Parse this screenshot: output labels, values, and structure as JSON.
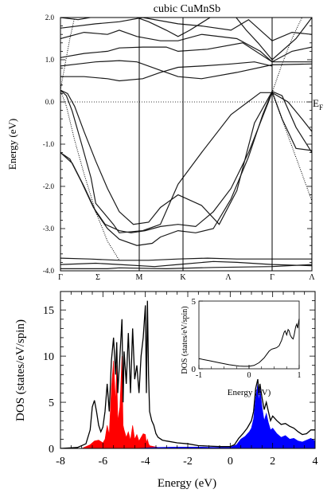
{
  "chart_data": [
    {
      "type": "line",
      "title": "cubic CuMnSb",
      "ylabel": "Energy (eV)",
      "xlabel": "",
      "ylim": [
        -4.0,
        2.0
      ],
      "yticks": [
        "2.0",
        "1.0",
        "0.0",
        "-1.0",
        "-2.0",
        "-3.0",
        "-4.0"
      ],
      "high_symmetry_points": [
        "Γ",
        "Σ",
        "M",
        "K",
        "Λ",
        "Γ",
        "Λ"
      ],
      "fermi_label": "E",
      "fermi_sub": "F",
      "grid": false,
      "bands": [
        [
          [
            0,
            0.28
          ],
          [
            0.05,
            0.15
          ],
          [
            0.1,
            -0.22
          ],
          [
            0.18,
            -1.0
          ],
          [
            0.26,
            -1.8
          ],
          [
            0.3,
            -2.4
          ],
          [
            0.45,
            -2.9
          ],
          [
            0.5,
            -3.1
          ],
          [
            0.7,
            -3.05
          ],
          [
            0.85,
            -2.9
          ],
          [
            1.0,
            -1.95
          ],
          [
            1.2,
            -1.2
          ],
          [
            1.45,
            -0.3
          ],
          [
            1.7,
            0.22
          ],
          [
            1.8,
            0.22
          ],
          [
            1.88,
            0.0
          ],
          [
            1.95,
            -0.4
          ],
          [
            2.0,
            -0.7
          ]
        ],
        [
          [
            0,
            0.28
          ],
          [
            0.06,
            0.2
          ],
          [
            0.12,
            -0.1
          ],
          [
            0.2,
            -0.7
          ],
          [
            0.3,
            -1.4
          ],
          [
            0.4,
            -2.05
          ],
          [
            0.5,
            -2.6
          ],
          [
            0.62,
            -2.9
          ],
          [
            0.75,
            -2.85
          ],
          [
            0.85,
            -2.5
          ],
          [
            1.0,
            -2.2
          ],
          [
            1.2,
            -2.45
          ],
          [
            1.35,
            -2.9
          ],
          [
            1.5,
            -2.1
          ],
          [
            1.65,
            -0.5
          ],
          [
            1.8,
            0.25
          ],
          [
            1.85,
            0.15
          ],
          [
            1.92,
            -0.6
          ],
          [
            2.0,
            -1.2
          ]
        ],
        [
          [
            0,
            -1.2
          ],
          [
            0.1,
            -1.45
          ],
          [
            0.2,
            -2.0
          ],
          [
            0.3,
            -2.6
          ],
          [
            0.4,
            -3.0
          ],
          [
            0.5,
            -3.25
          ],
          [
            0.65,
            -3.4
          ],
          [
            0.78,
            -3.35
          ],
          [
            0.85,
            -3.2
          ],
          [
            1.0,
            -3.05
          ],
          [
            1.15,
            -3.1
          ],
          [
            1.3,
            -3.0
          ],
          [
            1.45,
            -2.3
          ],
          [
            1.6,
            -1.3
          ],
          [
            1.72,
            -0.3
          ],
          [
            1.8,
            0.25
          ],
          [
            1.85,
            -0.4
          ],
          [
            1.92,
            -1.1
          ],
          [
            2.0,
            -1.15
          ]
        ],
        [
          [
            0,
            -1.2
          ],
          [
            0.08,
            -1.35
          ],
          [
            0.18,
            -1.9
          ],
          [
            0.28,
            -2.5
          ],
          [
            0.38,
            -2.9
          ],
          [
            0.5,
            -3.05
          ],
          [
            0.6,
            -3.1
          ],
          [
            0.72,
            -3.05
          ],
          [
            0.85,
            -2.95
          ],
          [
            1.0,
            -2.9
          ],
          [
            1.15,
            -2.95
          ],
          [
            1.3,
            -2.6
          ],
          [
            1.45,
            -2.05
          ],
          [
            1.6,
            -1.2
          ],
          [
            1.8,
            0.22
          ]
        ],
        [
          [
            0,
            -3.7
          ],
          [
            0.25,
            -3.72
          ],
          [
            0.5,
            -3.75
          ],
          [
            0.75,
            -3.75
          ],
          [
            1.0,
            -3.72
          ],
          [
            1.25,
            -3.7
          ],
          [
            1.5,
            -3.72
          ],
          [
            1.8,
            -3.72
          ],
          [
            2.0,
            -3.72
          ]
        ],
        [
          [
            0,
            -3.85
          ],
          [
            0.3,
            -3.82
          ],
          [
            0.5,
            -3.85
          ],
          [
            0.8,
            -3.9
          ],
          [
            1.0,
            -3.85
          ],
          [
            1.3,
            -3.78
          ],
          [
            1.5,
            -3.8
          ],
          [
            1.8,
            -3.85
          ],
          [
            2.0,
            -3.88
          ]
        ],
        [
          [
            0,
            -3.95
          ],
          [
            0.4,
            -3.95
          ],
          [
            0.5,
            -3.93
          ],
          [
            0.9,
            -3.95
          ],
          [
            1.3,
            -3.92
          ],
          [
            1.8,
            -3.9
          ],
          [
            2.0,
            -3.85
          ],
          [
            2.0,
            -3.1
          ]
        ],
        [
          [
            0,
            0.85
          ],
          [
            0.15,
            0.9
          ],
          [
            0.3,
            0.95
          ],
          [
            0.5,
            0.98
          ],
          [
            0.65,
            0.95
          ],
          [
            0.85,
            0.75
          ],
          [
            1.0,
            0.6
          ],
          [
            1.2,
            0.55
          ],
          [
            1.5,
            0.7
          ],
          [
            1.8,
            0.88
          ],
          [
            2.0,
            0.9
          ]
        ],
        [
          [
            0,
            1.05
          ],
          [
            0.2,
            1.15
          ],
          [
            0.4,
            1.2
          ],
          [
            0.5,
            1.28
          ],
          [
            0.7,
            1.3
          ],
          [
            0.9,
            1.3
          ],
          [
            1.0,
            1.2
          ],
          [
            1.25,
            1.25
          ],
          [
            1.55,
            1.4
          ],
          [
            1.8,
            0.95
          ],
          [
            2.0,
            0.95
          ]
        ],
        [
          [
            0,
            0.6
          ],
          [
            0.2,
            0.6
          ],
          [
            0.4,
            0.55
          ],
          [
            0.5,
            0.5
          ],
          [
            0.7,
            0.55
          ],
          [
            0.85,
            0.7
          ],
          [
            1.0,
            0.82
          ],
          [
            1.2,
            0.85
          ],
          [
            1.45,
            0.9
          ],
          [
            1.65,
            0.95
          ],
          [
            1.8,
            0.85
          ]
        ],
        [
          [
            0,
            1.5
          ],
          [
            0.2,
            1.65
          ],
          [
            0.4,
            1.6
          ],
          [
            0.5,
            1.7
          ],
          [
            0.65,
            1.55
          ],
          [
            0.85,
            1.45
          ],
          [
            1.0,
            1.45
          ],
          [
            1.2,
            1.6
          ],
          [
            1.5,
            1.5
          ],
          [
            1.7,
            1.2
          ],
          [
            1.8,
            0.95
          ],
          [
            1.9,
            1.2
          ],
          [
            2.0,
            1.3
          ]
        ],
        [
          [
            0,
            1.75
          ],
          [
            0.3,
            1.85
          ],
          [
            0.5,
            1.9
          ],
          [
            0.7,
            2.0
          ],
          [
            1.0,
            1.85
          ],
          [
            1.2,
            1.8
          ],
          [
            1.45,
            1.7
          ],
          [
            1.6,
            1.95
          ],
          [
            1.8,
            1.45
          ],
          [
            1.9,
            1.65
          ],
          [
            2.0,
            1.6
          ]
        ],
        [
          [
            0,
            2.0
          ],
          [
            0.15,
            1.95
          ],
          [
            0.35,
            2.05
          ]
        ],
        [
          [
            1.48,
            2.05
          ],
          [
            1.58,
            1.7
          ],
          [
            1.68,
            1.4
          ],
          [
            1.8,
            1.0
          ],
          [
            1.92,
            1.5
          ],
          [
            2.0,
            2.0
          ]
        ],
        [
          [
            0.6,
            2.05
          ],
          [
            0.75,
            1.9
          ],
          [
            0.9,
            1.7
          ],
          [
            1.0,
            1.55
          ],
          [
            1.1,
            1.7
          ],
          [
            1.3,
            2.05
          ]
        ]
      ],
      "dotted_bands": [
        [
          [
            0,
            0.28
          ],
          [
            0.05,
            -0.1
          ],
          [
            0.12,
            -0.9
          ],
          [
            0.2,
            -1.7
          ],
          [
            0.3,
            -2.6
          ],
          [
            0.4,
            -3.3
          ],
          [
            0.5,
            -3.75
          ]
        ],
        [
          [
            0,
            0.28
          ],
          [
            0.04,
            0.9
          ],
          [
            0.08,
            1.5
          ],
          [
            0.12,
            2.0
          ]
        ],
        [
          [
            1.8,
            0.22
          ],
          [
            1.85,
            0.9
          ],
          [
            1.9,
            1.5
          ],
          [
            1.95,
            2.0
          ]
        ],
        [
          [
            1.8,
            0.22
          ],
          [
            1.88,
            -0.8
          ],
          [
            1.95,
            -1.7
          ],
          [
            2.0,
            -2.35
          ]
        ]
      ]
    },
    {
      "type": "area",
      "title": "",
      "xlabel": "Energy (eV)",
      "ylabel": "DOS (states/eV/spin)",
      "xlim": [
        -8,
        4
      ],
      "ylim": [
        0,
        17
      ],
      "xticks": [
        "-8",
        "-6",
        "-4",
        "-2",
        "0",
        "2",
        "4"
      ],
      "yticks": [
        "0",
        "5",
        "10",
        "15"
      ],
      "series": [
        {
          "color": "#000000",
          "x": [
            -8,
            -7.2,
            -6.8,
            -6.6,
            -6.5,
            -6.4,
            -6.3,
            -6.2,
            -6.1,
            -6.0,
            -5.9,
            -5.8,
            -5.7,
            -5.6,
            -5.5,
            -5.4,
            -5.35,
            -5.3,
            -5.2,
            -5.1,
            -5.05,
            -5.0,
            -4.9,
            -4.8,
            -4.7,
            -4.6,
            -4.5,
            -4.4,
            -4.3,
            -4.2,
            -4.1,
            -4.0,
            -3.95,
            -3.9,
            -3.85,
            -3.8,
            -3.7,
            -3.6,
            -3.5,
            -3.4,
            -3.2,
            -3.0,
            -2.5,
            -2.0,
            -1.5,
            -1.0,
            -0.5,
            0.0,
            0.2,
            0.4,
            0.6,
            0.8,
            1.0,
            1.1,
            1.2,
            1.3,
            1.35,
            1.4,
            1.5,
            1.6,
            1.7,
            1.8,
            1.9,
            2.0,
            2.2,
            2.4,
            2.6,
            2.8,
            3.0,
            3.2,
            3.4,
            3.6,
            3.8,
            4.0
          ],
          "y": [
            0,
            0.1,
            0.5,
            2.0,
            4.5,
            5.2,
            4.0,
            2.5,
            1.8,
            2.3,
            4.0,
            7.0,
            4.0,
            9.5,
            12.0,
            8.0,
            11.5,
            6.0,
            10.0,
            14.0,
            5.0,
            10.5,
            7.0,
            12.5,
            6.0,
            13.0,
            7.5,
            9.0,
            6.0,
            10.0,
            12.0,
            15.5,
            6.0,
            16.0,
            8.0,
            4.0,
            3.0,
            2.5,
            1.6,
            1.2,
            0.9,
            0.8,
            0.6,
            0.5,
            0.3,
            0.25,
            0.2,
            0.2,
            0.4,
            1.1,
            1.6,
            2.2,
            3.0,
            4.0,
            6.5,
            7.5,
            6.0,
            7.0,
            5.5,
            4.2,
            5.0,
            4.0,
            3.0,
            3.5,
            3.0,
            2.6,
            2.7,
            2.4,
            2.2,
            1.8,
            1.5,
            1.6,
            2.0,
            2.0
          ]
        },
        {
          "color": "#ff0000",
          "x": [
            -7.0,
            -6.6,
            -6.4,
            -6.2,
            -6.0,
            -5.9,
            -5.8,
            -5.7,
            -5.6,
            -5.5,
            -5.4,
            -5.35,
            -5.3,
            -5.2,
            -5.1,
            -5.05,
            -5.0,
            -4.9,
            -4.8,
            -4.7,
            -4.6,
            -4.5,
            -4.4,
            -4.3,
            -4.2,
            -4.1,
            -4.0,
            -3.95,
            -3.9,
            -3.85,
            -3.8,
            -3.6,
            -3.4,
            -3.0
          ],
          "y": [
            0,
            0.4,
            0.8,
            0.9,
            0.6,
            1.0,
            2.5,
            1.5,
            6.5,
            9.5,
            5.0,
            9.0,
            3.0,
            4.5,
            10.0,
            2.5,
            2.0,
            1.2,
            1.8,
            0.9,
            2.5,
            1.0,
            1.5,
            0.8,
            1.2,
            1.6,
            1.5,
            0.6,
            1.0,
            0.5,
            0.3,
            0.2,
            0.1,
            0
          ]
        },
        {
          "color": "#0000ff",
          "x": [
            -4.5,
            -3.5,
            -2.5,
            -1.5,
            -0.5,
            0.0,
            0.3,
            0.5,
            0.7,
            0.9,
            1.0,
            1.1,
            1.2,
            1.3,
            1.35,
            1.4,
            1.5,
            1.6,
            1.7,
            1.8,
            1.9,
            2.0,
            2.2,
            2.4,
            2.6,
            2.8,
            3.0,
            3.2,
            3.4,
            3.6,
            3.8,
            4.0
          ],
          "y": [
            0,
            0.1,
            0.15,
            0.15,
            0.1,
            0.1,
            0.4,
            1.0,
            1.3,
            1.8,
            2.2,
            3.2,
            5.5,
            7.0,
            5.0,
            6.5,
            4.5,
            3.0,
            3.8,
            2.8,
            2.0,
            2.2,
            1.6,
            1.2,
            1.4,
            1.0,
            1.1,
            0.8,
            0.7,
            0.9,
            1.1,
            0.8
          ]
        }
      ],
      "inset": {
        "type": "line",
        "xlabel": "Energy (eV)",
        "ylabel": "DOS (states/eV/spin)",
        "xlim": [
          -1,
          1
        ],
        "ylim": [
          0,
          5
        ],
        "xticks": [
          "-1",
          "0",
          "1"
        ],
        "yticks": [
          "0",
          "5"
        ],
        "x": [
          -1.0,
          -0.8,
          -0.6,
          -0.4,
          -0.2,
          -0.1,
          0.0,
          0.1,
          0.2,
          0.3,
          0.4,
          0.45,
          0.5,
          0.55,
          0.6,
          0.65,
          0.7,
          0.72,
          0.75,
          0.78,
          0.8,
          0.82,
          0.85,
          0.88,
          0.9,
          0.93,
          0.95,
          0.97,
          1.0
        ],
        "y": [
          0.75,
          0.6,
          0.45,
          0.3,
          0.2,
          0.18,
          0.18,
          0.25,
          0.45,
          0.8,
          1.3,
          1.45,
          1.5,
          1.55,
          1.7,
          2.1,
          2.7,
          2.8,
          2.5,
          2.9,
          2.8,
          2.5,
          2.3,
          2.2,
          2.5,
          3.1,
          3.3,
          3.0,
          3.7
        ]
      }
    }
  ]
}
